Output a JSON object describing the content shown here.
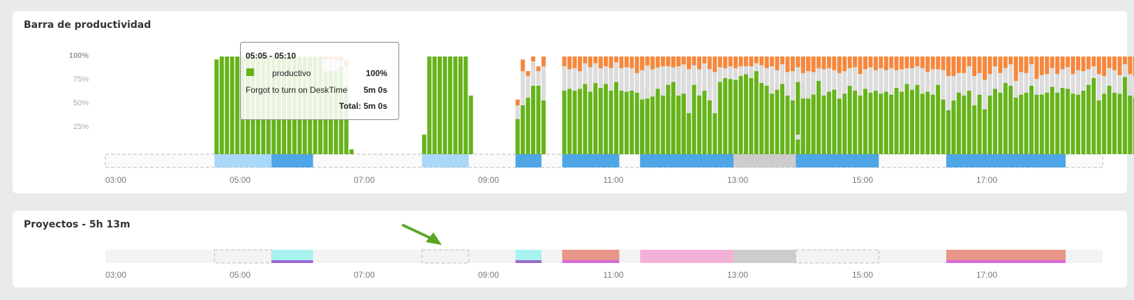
{
  "productivity": {
    "title": "Barra de productividad",
    "y_ticks": [
      "100%",
      "75%",
      "50%",
      "25%"
    ],
    "x_ticks": [
      "03:00",
      "05:00",
      "07:00",
      "09:00",
      "11:00",
      "13:00",
      "15:00",
      "17:00"
    ],
    "tooltip": {
      "time_range": "05:05 - 05:10",
      "category_label": "productivo",
      "category_percent": "100%",
      "note_label": "Forgot to turn on DeskTime",
      "note_value": "5m 0s",
      "total_label": "Total: 5m 0s"
    }
  },
  "projects": {
    "title": "Proyectos - 5h 13m",
    "x_ticks": [
      "03:00",
      "05:00",
      "07:00",
      "09:00",
      "11:00",
      "13:00",
      "15:00",
      "17:00"
    ]
  },
  "colors": {
    "productive": "#66b31b",
    "neutral": "#dcdcdc",
    "unproductive": "#f5883d",
    "timeline_active": "#4ea6e6",
    "timeline_light": "#a9d8f8",
    "timeline_offline": "#cccccc",
    "project_cyan": "#a8f2ef",
    "project_salmon": "#e9968a",
    "project_pink": "#f2b2d8",
    "arrow": "#5aa623"
  },
  "chart_data": {
    "type": "bar",
    "title": "Barra de productividad",
    "xlabel": "",
    "ylabel": "",
    "ylim": [
      0,
      100
    ],
    "x_range": [
      "02:48",
      "18:38"
    ],
    "bar_interval_minutes": 5,
    "stack_order": [
      "productive",
      "neutral",
      "unproductive"
    ],
    "series_colors": {
      "productive": "#66b31b",
      "neutral": "#dcdcdc",
      "unproductive": "#f5883d"
    },
    "groups": [
      {
        "start": "04:35",
        "productive": [
          97,
          100,
          100,
          100,
          100,
          100,
          100,
          100,
          100,
          100,
          100,
          100,
          100,
          100,
          100,
          100,
          100,
          100,
          100,
          100,
          100,
          85,
          85,
          85,
          90,
          70,
          5
        ],
        "neutral": [
          0,
          0,
          0,
          0,
          0,
          0,
          0,
          0,
          0,
          0,
          0,
          0,
          0,
          0,
          0,
          0,
          0,
          0,
          0,
          0,
          0,
          12,
          12,
          12,
          5,
          20,
          0
        ],
        "unproductive": [
          0,
          0,
          0,
          0,
          0,
          0,
          0,
          0,
          0,
          0,
          0,
          0,
          0,
          0,
          0,
          0,
          0,
          0,
          0,
          0,
          0,
          3,
          3,
          3,
          5,
          6,
          0
        ]
      },
      {
        "start": "07:55",
        "productive": [
          20,
          100,
          100,
          100,
          100,
          100,
          100,
          100,
          100,
          60
        ],
        "neutral": [
          0,
          0,
          0,
          0,
          0,
          0,
          0,
          0,
          0,
          0
        ],
        "unproductive": [
          0,
          0,
          0,
          0,
          0,
          0,
          0,
          0,
          0,
          0
        ]
      },
      {
        "start": "09:25",
        "productive": [
          36,
          50,
          58,
          70,
          70,
          55
        ],
        "neutral": [
          14,
          35,
          22,
          25,
          15,
          35
        ],
        "unproductive": [
          6,
          12,
          5,
          5,
          5,
          10
        ]
      },
      {
        "start": "10:10",
        "productive": [
          65,
          67,
          65,
          67,
          72,
          64,
          73,
          68,
          72,
          65,
          74,
          65,
          64,
          65,
          63,
          60,
          64,
          63,
          64,
          60,
          58,
          60,
          65,
          60,
          43
        ],
        "neutral": [
          25,
          20,
          23,
          18,
          21,
          25,
          20,
          20,
          18,
          23,
          20,
          23,
          25,
          23,
          20,
          24,
          25,
          22,
          25,
          22,
          28,
          28,
          22,
          28,
          44
        ],
        "unproductive": [
          10,
          13,
          12,
          15,
          7,
          11,
          7,
          12,
          10,
          12,
          6,
          12,
          11,
          12,
          17,
          16,
          11,
          15,
          11,
          18,
          14,
          12,
          13,
          12,
          13
        ]
      },
      {
        "start": "11:25",
        "productive": [
          56,
          57,
          59,
          67,
          60,
          71,
          74,
          60,
          62,
          42,
          71,
          60,
          65,
          55,
          42,
          74,
          78,
          77,
          76,
          80,
          82,
          78,
          85,
          73,
          70,
          62,
          66,
          72,
          60,
          55,
          74,
          71,
          63,
          71,
          67,
          62
        ],
        "neutral": [
          30,
          34,
          28,
          22,
          30,
          19,
          15,
          30,
          30,
          45,
          20,
          27,
          28,
          32,
          42,
          15,
          10,
          13,
          12,
          10,
          8,
          12,
          8,
          18,
          18,
          28,
          20,
          20,
          24,
          30,
          15,
          17,
          23,
          22,
          23,
          28
        ],
        "unproductive": [
          14,
          9,
          13,
          11,
          10,
          10,
          11,
          10,
          8,
          13,
          9,
          13,
          7,
          13,
          16,
          11,
          12,
          10,
          12,
          10,
          10,
          10,
          7,
          9,
          12,
          10,
          14,
          8,
          16,
          15,
          11,
          12,
          14,
          7,
          10,
          10
        ]
      },
      {
        "start": "13:55",
        "productive": [
          15,
          57,
          57,
          61,
          75,
          60,
          64,
          66,
          57,
          62,
          70,
          65,
          60,
          67,
          63,
          65,
          62,
          64,
          61,
          68,
          64,
          72,
          66,
          71,
          62,
          64,
          61,
          71,
          56,
          52,
          48,
          47
        ],
        "neutral": [
          5,
          26,
          28,
          23,
          13,
          27,
          24,
          20,
          26,
          23,
          18,
          24,
          22,
          20,
          26,
          21,
          26,
          22,
          27,
          18,
          23,
          16,
          22,
          19,
          26,
          20,
          26,
          16,
          30,
          35,
          20,
          10
        ],
        "unproductive": [
          0,
          17,
          15,
          16,
          12,
          13,
          12,
          14,
          17,
          15,
          12,
          11,
          18,
          13,
          11,
          14,
          12,
          14,
          12,
          14,
          13,
          12,
          12,
          10,
          12,
          16,
          13,
          13,
          14,
          13,
          12,
          8
        ]
      },
      {
        "start": "16:20",
        "productive": [
          45,
          55,
          63,
          60,
          65,
          50,
          61,
          46,
          60,
          67,
          63,
          73,
          70,
          58,
          61,
          63,
          70,
          61,
          61,
          63,
          69,
          63,
          68,
          67,
          62,
          61,
          65,
          71,
          78,
          55,
          62,
          70,
          63,
          62,
          79,
          60,
          58,
          55,
          60,
          61,
          48,
          62,
          45
        ],
        "neutral": [
          35,
          25,
          20,
          23,
          25,
          30,
          22,
          30,
          22,
          23,
          20,
          15,
          22,
          17,
          23,
          20,
          22,
          16,
          20,
          19,
          19,
          19,
          19,
          22,
          20,
          25,
          20,
          16,
          12,
          27,
          18,
          18,
          23,
          19,
          13,
          22,
          22,
          24,
          26,
          23,
          30,
          20,
          10
        ],
        "unproductive": [
          20,
          20,
          17,
          17,
          10,
          20,
          17,
          24,
          18,
          10,
          17,
          12,
          8,
          25,
          16,
          17,
          8,
          23,
          19,
          18,
          12,
          18,
          13,
          11,
          18,
          14,
          15,
          13,
          10,
          18,
          20,
          12,
          14,
          19,
          8,
          18,
          20,
          21,
          14,
          16,
          22,
          18,
          5
        ]
      }
    ],
    "activity_timeline": [
      {
        "start": "04:35",
        "end": "05:30",
        "kind": "light"
      },
      {
        "start": "05:30",
        "end": "06:10",
        "kind": "active"
      },
      {
        "start": "07:55",
        "end": "08:40",
        "kind": "light"
      },
      {
        "start": "09:25",
        "end": "09:50",
        "kind": "active"
      },
      {
        "start": "10:10",
        "end": "11:05",
        "kind": "active"
      },
      {
        "start": "11:25",
        "end": "12:55",
        "kind": "active"
      },
      {
        "start": "12:55",
        "end": "13:55",
        "kind": "offline"
      },
      {
        "start": "13:55",
        "end": "15:15",
        "kind": "active"
      },
      {
        "start": "16:20",
        "end": "18:15",
        "kind": "active"
      }
    ],
    "project_timeline": [
      {
        "start": "04:35",
        "end": "05:30",
        "kind": "empty"
      },
      {
        "start": "05:30",
        "end": "06:10",
        "kind": "cyan"
      },
      {
        "start": "07:55",
        "end": "08:40",
        "kind": "empty"
      },
      {
        "start": "09:25",
        "end": "09:50",
        "kind": "cyan"
      },
      {
        "start": "10:10",
        "end": "11:05",
        "kind": "salmon"
      },
      {
        "start": "11:25",
        "end": "12:55",
        "kind": "pink"
      },
      {
        "start": "12:55",
        "end": "13:55",
        "kind": "offline"
      },
      {
        "start": "13:55",
        "end": "15:15",
        "kind": "empty"
      },
      {
        "start": "16:20",
        "end": "18:15",
        "kind": "salmon"
      }
    ]
  }
}
